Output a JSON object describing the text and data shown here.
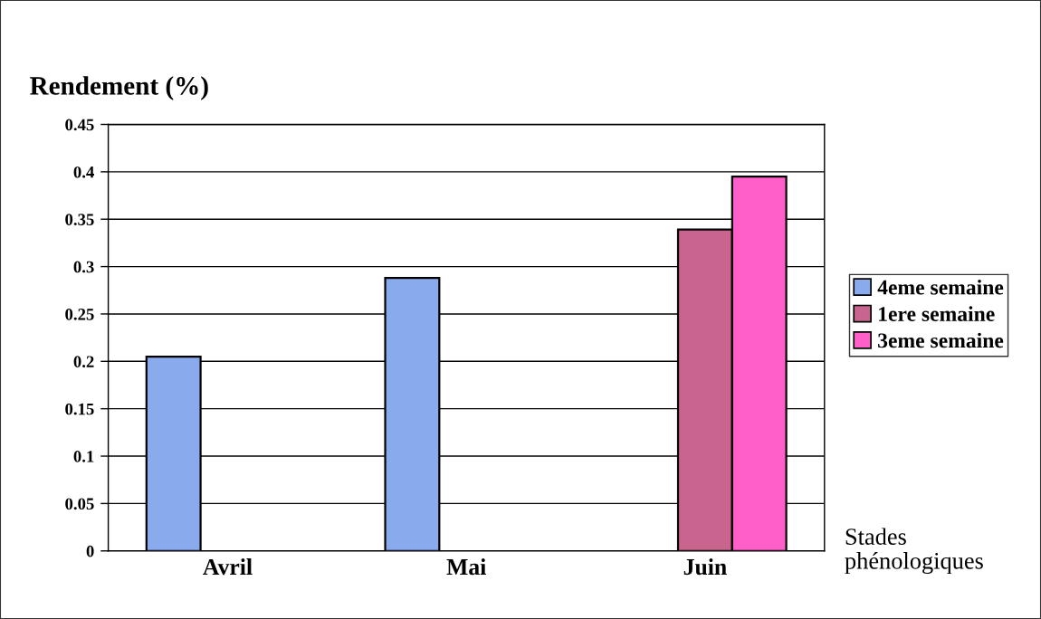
{
  "chart_data": {
    "type": "bar",
    "ylabel": "Rendement (%)",
    "xlabel": "Stades\nphénologiques",
    "categories": [
      "Avril",
      "Mai",
      "Juin"
    ],
    "series": [
      {
        "name": "4eme semaine",
        "color": "#8aaaee",
        "values": [
          0.205,
          0.288,
          null
        ]
      },
      {
        "name": "1ere semaine",
        "color": "#c9648f",
        "values": [
          null,
          null,
          0.339
        ]
      },
      {
        "name": "3eme semaine",
        "color": "#ff5fc8",
        "values": [
          null,
          null,
          0.395
        ]
      }
    ],
    "ylim": [
      0,
      0.45
    ],
    "yticks": [
      0,
      0.05,
      0.1,
      0.15,
      0.2,
      0.25,
      0.3,
      0.35,
      0.4,
      0.45
    ],
    "grid": "y",
    "legend": "right"
  }
}
